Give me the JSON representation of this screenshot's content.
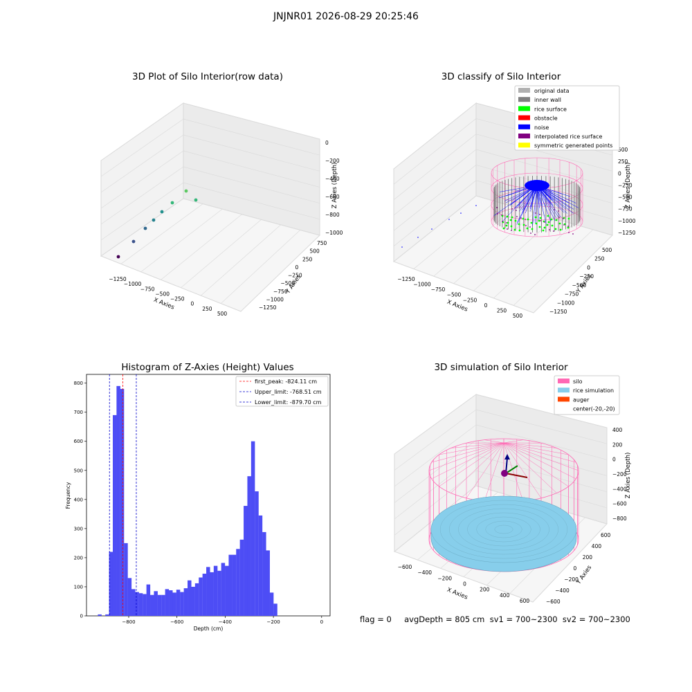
{
  "figure": {
    "title": "JNJNR01 2026-08-29 20:25:46",
    "footer": "flag = 0     avgDepth = 805 cm  sv1 = 700~2300  sv2 = 700~2300"
  },
  "colors": {
    "hist_bar": "#4d4df5",
    "peak_line": "#ff0000",
    "limit_line": "#0000cc",
    "silo": "#ff69b4",
    "rice_simulation": "#87ceeb",
    "auger": "#ff4500",
    "inner_wall": "#808080",
    "rice_surface": "#00ff00",
    "obstacle": "#ff0000",
    "noise": "#0000ff",
    "interpolated": "#800080",
    "symmetric": "#ffff00",
    "original": "#b0b0b0"
  },
  "panels": {
    "raw": {
      "title": "3D Plot of Silo Interior(row data)",
      "xlabel": "X Axies",
      "ylabel": "Y Axies",
      "zlabel": "Z Axies (Depth)",
      "xticks": [
        "−1250",
        "−1000",
        "−750",
        "−500",
        "−250",
        "0",
        "250",
        "500"
      ],
      "yticks": [
        "750",
        "500",
        "250",
        "0",
        "−250",
        "−500",
        "−750",
        "−1000",
        "−1250"
      ],
      "zticks": [
        "0",
        "−200",
        "−400",
        "−600",
        "−800",
        "−1000"
      ]
    },
    "classify": {
      "title": "3D classify of Silo Interior",
      "xlabel": "X Axies",
      "ylabel": "Y Axies",
      "zlabel": "Z Axies (Depth)",
      "xticks": [
        "−1250",
        "−1000",
        "−750",
        "−500",
        "−250",
        "0",
        "250",
        "500"
      ],
      "yticks": [
        "500",
        "250",
        "0",
        "−250",
        "−500",
        "−750",
        "−1000",
        "−1250"
      ],
      "zticks": [
        "500",
        "250",
        "0",
        "−250",
        "−500",
        "−750",
        "−1000",
        "−1250"
      ],
      "legend": [
        "original data",
        "inner wall",
        "rice surface",
        "obstacle",
        "noise",
        "interpolated rice surface",
        "symmetric generated points"
      ]
    },
    "simulation": {
      "title": "3D simulation of Silo Interior",
      "xlabel": "X Axies",
      "ylabel": "Y Axies",
      "zlabel": "Z Axies (Depth)",
      "xticks": [
        "−600",
        "−400",
        "−200",
        "0",
        "200",
        "400",
        "600"
      ],
      "yticks": [
        "600",
        "400",
        "200",
        "0",
        "−200",
        "−400",
        "−600"
      ],
      "zticks": [
        "400",
        "200",
        "0",
        "−200",
        "−400",
        "−600",
        "−800"
      ],
      "legend": [
        "silo",
        "rice simulation",
        "auger",
        "center(-20,-20)"
      ]
    }
  },
  "chart_data": [
    {
      "type": "bar",
      "title": "Histogram of Z-Axies (Height) Values",
      "xlabel": "Depth (cm)",
      "ylabel": "Frequency",
      "xlim": [
        -975,
        35
      ],
      "ylim": [
        0,
        830
      ],
      "xticks": [
        -800,
        -600,
        -400,
        -200,
        0
      ],
      "xtick_labels": [
        "−800",
        "−600",
        "−400",
        "−200",
        "0"
      ],
      "yticks": [
        0,
        100,
        200,
        300,
        400,
        500,
        600,
        700,
        800
      ],
      "bin_start": -928,
      "bin_width": 15.5,
      "values": [
        5,
        0,
        5,
        220,
        690,
        790,
        780,
        250,
        130,
        92,
        82,
        78,
        75,
        108,
        72,
        85,
        72,
        72,
        92,
        88,
        80,
        90,
        82,
        95,
        122,
        100,
        112,
        132,
        145,
        168,
        150,
        172,
        155,
        182,
        172,
        210,
        210,
        230,
        262,
        378,
        480,
        600,
        428,
        345,
        288,
        225,
        80,
        42
      ],
      "lines": [
        {
          "name": "first_peak: -824.11 cm",
          "x": -824.11,
          "style": "red"
        },
        {
          "name": "Upper_limit: -768.51 cm",
          "x": -768.51,
          "style": "blue"
        },
        {
          "name": "Lower_limit: -879.70 cm",
          "x": -879.7,
          "style": "blue"
        }
      ],
      "legend_position": "upper-right"
    }
  ]
}
